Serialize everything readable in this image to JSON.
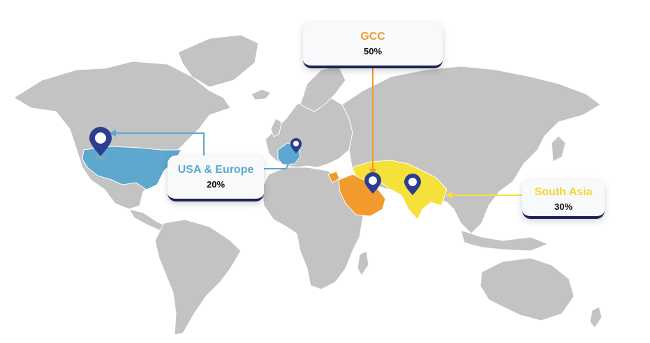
{
  "regions": [
    {
      "key": "gcc",
      "label": "GCC",
      "value": "50%",
      "color": "#f39a2c"
    },
    {
      "key": "usa_europe",
      "label": "USA & Europe",
      "value": "20%",
      "color": "#5ea7cf"
    },
    {
      "key": "south_asia",
      "label": "South Asia",
      "value": "30%",
      "color": "#f2d631"
    }
  ],
  "colors": {
    "land": "#c3c3c3",
    "border": "#ffffff",
    "pin": "#2b3e8f",
    "card_accent": "#1f2257"
  }
}
